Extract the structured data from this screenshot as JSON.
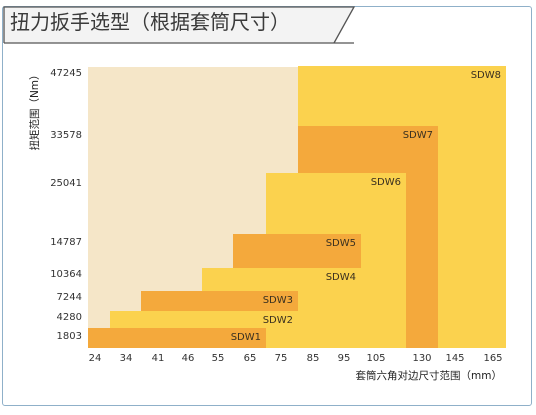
{
  "title": "扭力扳手选型（根据套筒尺寸）",
  "chart_data": {
    "type": "bar",
    "title": "扭力扳手选型（根据套筒尺寸）",
    "xlabel": "套筒六角对边尺寸范围（mm）",
    "ylabel": "扭矩范围（Nm）",
    "x_ticks": [
      "24",
      "34",
      "41",
      "46",
      "55",
      "65",
      "75",
      "85",
      "95",
      "105",
      "130",
      "145",
      "165"
    ],
    "y_ticks": [
      "1803",
      "4280",
      "7244",
      "10364",
      "14787",
      "25041",
      "33578",
      "47245"
    ],
    "series": [
      {
        "name": "SDW1",
        "x_range": [
          "24",
          "65"
        ],
        "torque_max": 1803
      },
      {
        "name": "SDW2",
        "x_range": [
          "34",
          "75"
        ],
        "torque_max": 4280
      },
      {
        "name": "SDW3",
        "x_range": [
          "41",
          "75"
        ],
        "torque_max": 7244
      },
      {
        "name": "SDW4",
        "x_range": [
          "55",
          "95"
        ],
        "torque_max": 10364
      },
      {
        "name": "SDW5",
        "x_range": [
          "65",
          "95"
        ],
        "torque_max": 14787
      },
      {
        "name": "SDW6",
        "x_range": [
          "75",
          "105"
        ],
        "torque_max": 25041
      },
      {
        "name": "SDW7",
        "x_range": [
          "85",
          "130"
        ],
        "torque_max": 33578
      },
      {
        "name": "SDW8",
        "x_range": [
          "85",
          "165"
        ],
        "torque_max": 47245
      }
    ],
    "colors": {
      "background_region": "#f5e6c8",
      "light_bar": "#fbd24e",
      "dark_bar": "#f4a93c"
    }
  }
}
